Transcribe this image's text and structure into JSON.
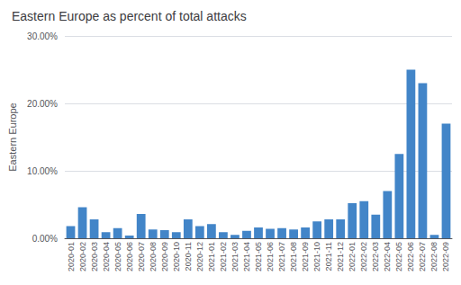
{
  "chart_data": {
    "type": "bar",
    "title": "Eastern Europe as percent of total attacks",
    "ylabel": "Eastern Europe",
    "categories": [
      "2020-01",
      "2020-02",
      "2020-03",
      "2020-04",
      "2020-05",
      "2020-06",
      "2020-07",
      "2020-08",
      "2020-09",
      "2020-10",
      "2020-11",
      "2020-12",
      "2021-01",
      "2021-02",
      "2021-03",
      "2021-04",
      "2021-05",
      "2021-06",
      "2021-07",
      "2021-08",
      "2021-09",
      "2021-10",
      "2021-11",
      "2021-12",
      "2022-01",
      "2022-02",
      "2022-03",
      "2022-04",
      "2022-05",
      "2022-06",
      "2022-07",
      "2022-08",
      "2022-09"
    ],
    "values": [
      1.8,
      4.6,
      2.8,
      0.9,
      1.5,
      0.4,
      3.6,
      1.3,
      1.2,
      0.9,
      2.8,
      1.8,
      2.1,
      0.9,
      0.5,
      1.1,
      1.6,
      1.4,
      1.5,
      1.3,
      1.6,
      2.5,
      2.8,
      2.8,
      5.2,
      5.5,
      3.5,
      7.0,
      12.5,
      25.0,
      23.0,
      0.5,
      17.0
    ],
    "color": "#4285c8",
    "ylim": [
      0,
      30
    ],
    "yticks": [
      {
        "value": 0,
        "label": "0.00%"
      },
      {
        "value": 10,
        "label": "10.00%"
      },
      {
        "value": 20,
        "label": "20.00%"
      },
      {
        "value": 30,
        "label": "30.00%"
      }
    ],
    "grid": true
  }
}
